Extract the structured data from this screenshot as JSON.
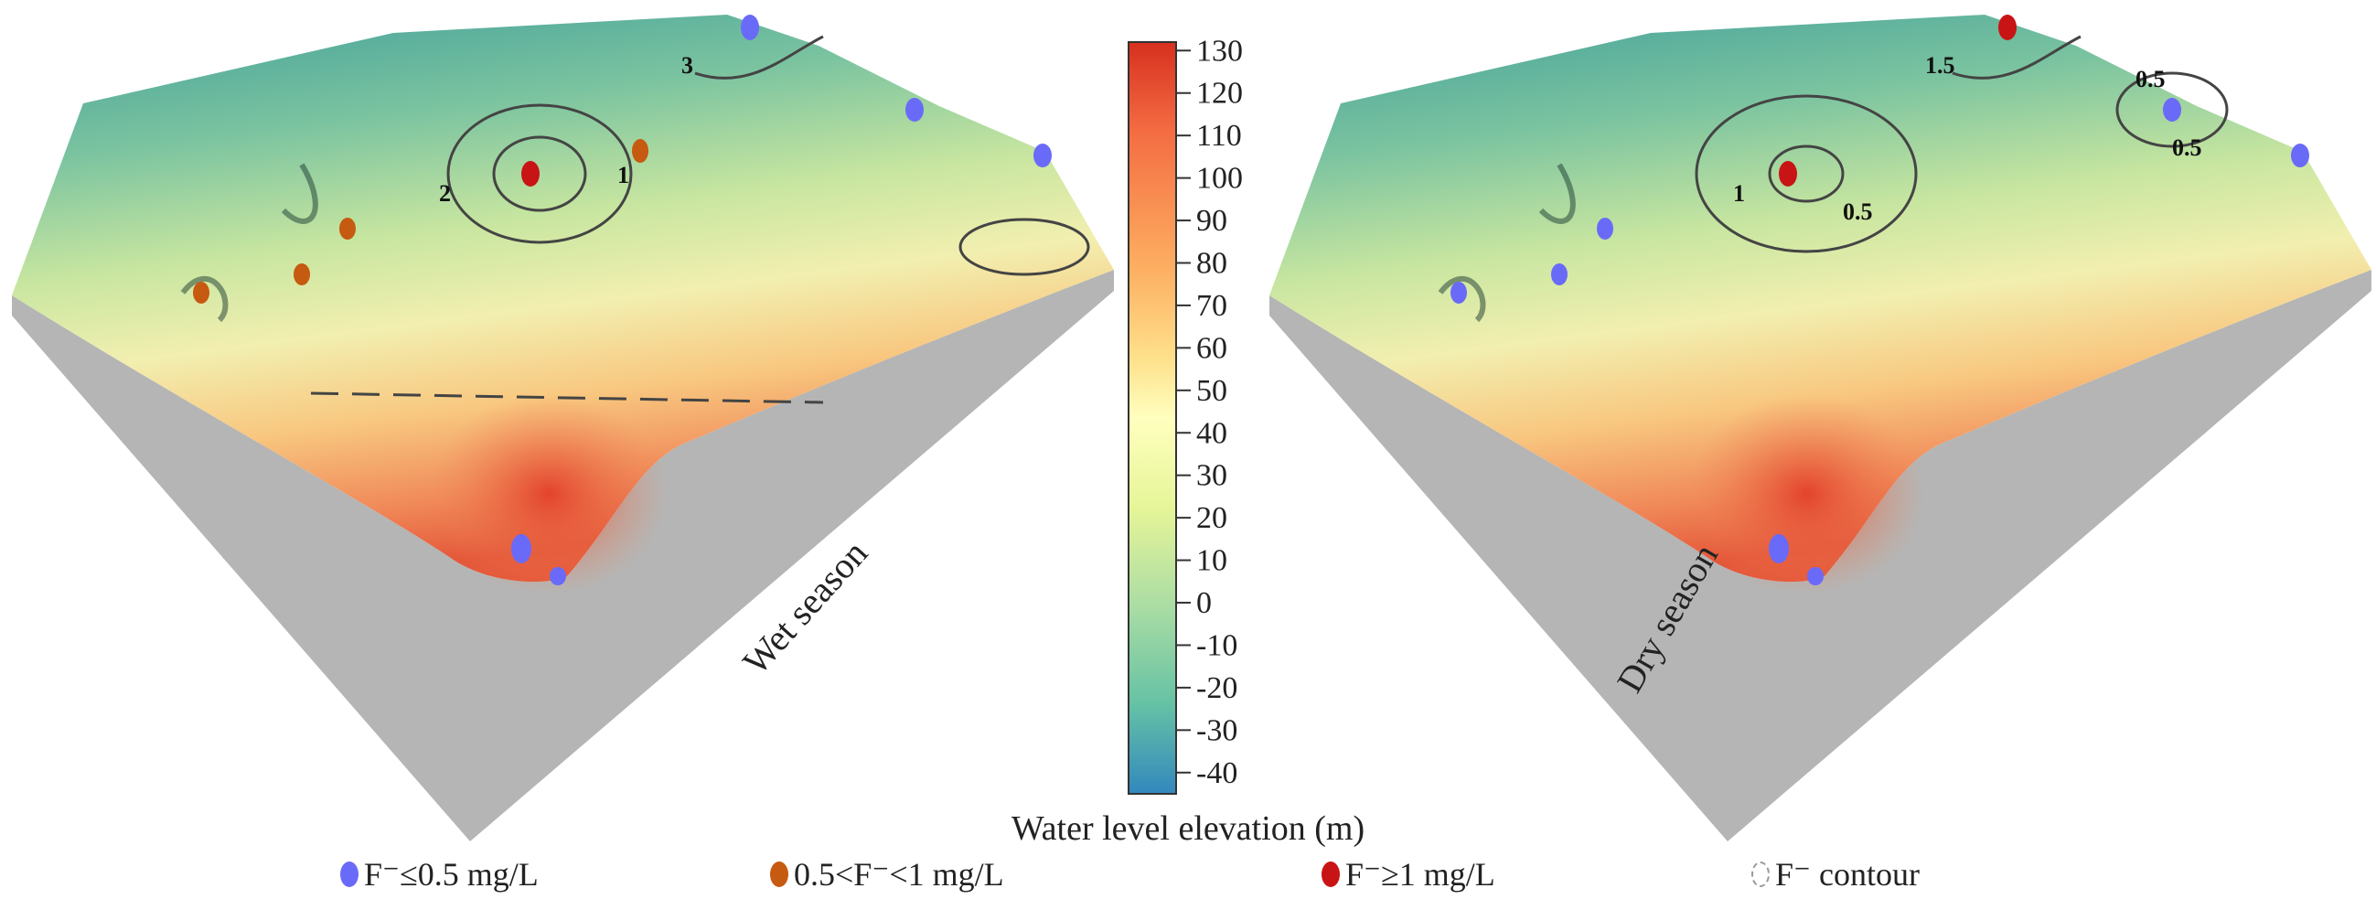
{
  "chart_data": {
    "type": "heatmap",
    "subtype": "3d-surface",
    "panels": [
      {
        "label": "Wet season",
        "contour_labels": [
          "3",
          "2",
          "1"
        ]
      },
      {
        "label": "Dry season",
        "contour_labels": [
          "1.5",
          "0.5",
          "0.5",
          "1",
          "0.5"
        ]
      }
    ],
    "colorbar": {
      "title": "Water level elevation (m)",
      "range": [
        -45,
        132
      ],
      "ticks": [
        "130",
        "120",
        "110",
        "100",
        "90",
        "80",
        "70",
        "60",
        "50",
        "40",
        "30",
        "20",
        "10",
        "0",
        "-10",
        "-20",
        "-30",
        "-40"
      ],
      "colors": [
        "#d7301f",
        "#f46d43",
        "#fdae61",
        "#fee08b",
        "#ffffbf",
        "#e6f598",
        "#abdda4",
        "#66c2a5",
        "#3288bd"
      ]
    },
    "legend": [
      {
        "label": "F⁻≤0.5 mg/L",
        "color": "#6a6af8"
      },
      {
        "label": "0.5<F⁻<1 mg/L",
        "color": "#c65a10"
      },
      {
        "label": "F⁻≥1 mg/L",
        "color": "#c81414"
      },
      {
        "label": "F⁻ contour",
        "color": "#ffffff"
      }
    ]
  }
}
